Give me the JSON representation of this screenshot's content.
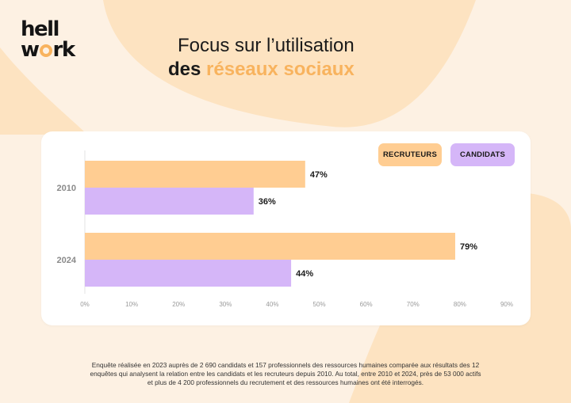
{
  "brand": {
    "logo_line1": "hell",
    "logo_line2": "w",
    "logo_line2b": "rk"
  },
  "header": {
    "title_line1": "Focus sur l’utilisation",
    "title_line2_a": "des ",
    "title_line2_b": "réseaux sociaux"
  },
  "colors": {
    "recruteurs": "#ffcd92",
    "candidats": "#d5b6f8",
    "accent": "#f8b35e",
    "background": "#fdf1e3"
  },
  "chart_data": {
    "type": "bar",
    "orientation": "horizontal",
    "categories": [
      "2010",
      "2024"
    ],
    "series": [
      {
        "name": "RECRUTEURS",
        "values": [
          47,
          79
        ],
        "labels": [
          "47%",
          "79%"
        ]
      },
      {
        "name": "CANDIDATS",
        "values": [
          36,
          44
        ],
        "labels": [
          "36%",
          "44%"
        ]
      }
    ],
    "xlim": [
      0,
      90
    ],
    "xticks": [
      "0%",
      "10%",
      "20%",
      "30%",
      "40%",
      "50%",
      "60%",
      "70%",
      "80%",
      "90%"
    ],
    "legend_position": "top-right",
    "grid": false
  },
  "footnote": {
    "line1": "Enquête réalisée en 2023 auprès de 2 690 candidats et 157 professionnels des ressources humaines comparée aux résultats des 12",
    "line2": "enquêtes qui analysent la relation entre les candidats et les recruteurs depuis 2010. Au total, entre 2010 et 2024, près de 53 000 actifs",
    "line3": "et plus de 4 200 professionnels du recrutement et des ressources humaines ont été interrogés."
  }
}
